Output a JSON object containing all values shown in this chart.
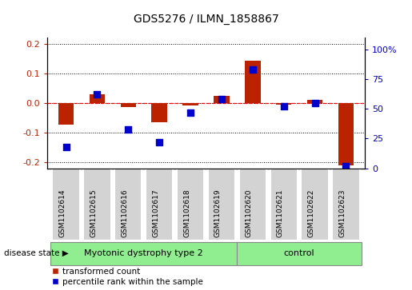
{
  "title": "GDS5276 / ILMN_1858867",
  "samples": [
    "GSM1102614",
    "GSM1102615",
    "GSM1102616",
    "GSM1102617",
    "GSM1102618",
    "GSM1102619",
    "GSM1102620",
    "GSM1102621",
    "GSM1102622",
    "GSM1102623"
  ],
  "transformed_count": [
    -0.073,
    0.028,
    -0.015,
    -0.065,
    -0.008,
    0.025,
    0.142,
    -0.005,
    0.01,
    -0.21
  ],
  "percentile_rank": [
    18,
    62,
    33,
    22,
    47,
    58,
    83,
    52,
    55,
    2
  ],
  "groups": [
    {
      "label": "Myotonic dystrophy type 2",
      "start": 0,
      "end": 6,
      "color": "#90ee90"
    },
    {
      "label": "control",
      "start": 6,
      "end": 10,
      "color": "#90ee90"
    }
  ],
  "ylim_left": [
    -0.22,
    0.22
  ],
  "ylim_right": [
    0,
    110
  ],
  "yticks_left": [
    -0.2,
    -0.1,
    0.0,
    0.1,
    0.2
  ],
  "yticks_right": [
    0,
    25,
    50,
    75,
    100
  ],
  "bar_color": "#bb2200",
  "dot_color": "#0000cc",
  "bar_width": 0.5,
  "dot_size": 30,
  "grid_color": "black",
  "zero_line_color": "red",
  "disease_state_label": "disease state",
  "legend_entries": [
    "transformed count",
    "percentile rank within the sample"
  ],
  "background_plot": "#ffffff",
  "sample_box_color": "#d3d3d3",
  "label_fontsize": 7.5,
  "title_fontsize": 10
}
